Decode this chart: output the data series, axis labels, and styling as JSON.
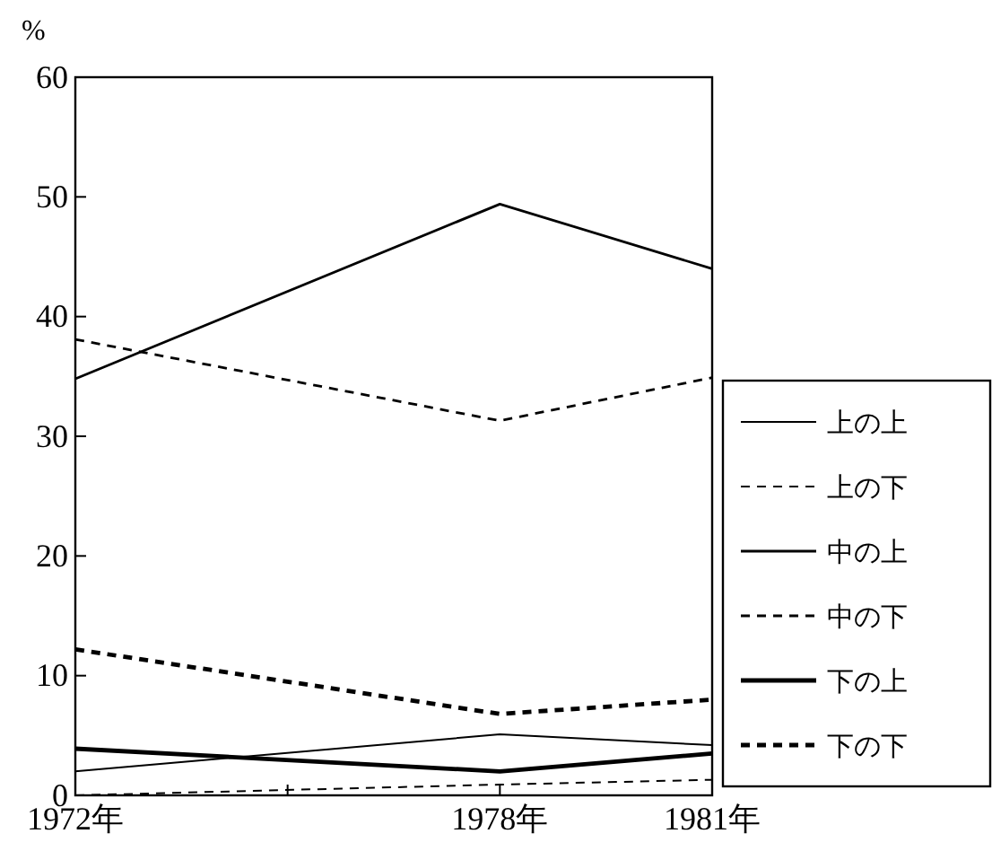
{
  "chart_data": {
    "type": "line",
    "ylabel": "%",
    "x": [
      1972,
      1978,
      1981
    ],
    "xlim": [
      1972,
      1981
    ],
    "xticks": [
      {
        "value": 1972,
        "label": "1972年"
      },
      {
        "value": 1975,
        "label": null
      },
      {
        "value": 1978,
        "label": "1978年"
      },
      {
        "value": 1981,
        "label": "1981年"
      }
    ],
    "ylim": [
      0,
      60
    ],
    "yticks": [
      0,
      10,
      20,
      30,
      40,
      50,
      60
    ],
    "grid": false,
    "legend": "right",
    "marker": "none",
    "series": [
      {
        "name": "上の上",
        "color": "#000000",
        "line_style": "solid",
        "values": [
          2.0,
          5.1,
          4.2
        ]
      },
      {
        "name": "上の下",
        "color": "#000000",
        "line_style": "dashed",
        "values": [
          0,
          0.9,
          1.3
        ]
      },
      {
        "name": "中の上",
        "color": "#000000",
        "line_style": "solid",
        "values": [
          34.8,
          49.4,
          44.0
        ]
      },
      {
        "name": "中の下",
        "color": "#000000",
        "line_style": "dashed",
        "values": [
          38.1,
          31.3,
          34.9
        ]
      },
      {
        "name": "下の上",
        "color": "#000000",
        "line_style": "solid",
        "values": [
          3.9,
          2.0,
          3.5
        ]
      },
      {
        "name": "下の下",
        "color": "#000000",
        "line_style": "dashed",
        "values": [
          12.2,
          6.8,
          8.0
        ]
      }
    ]
  }
}
